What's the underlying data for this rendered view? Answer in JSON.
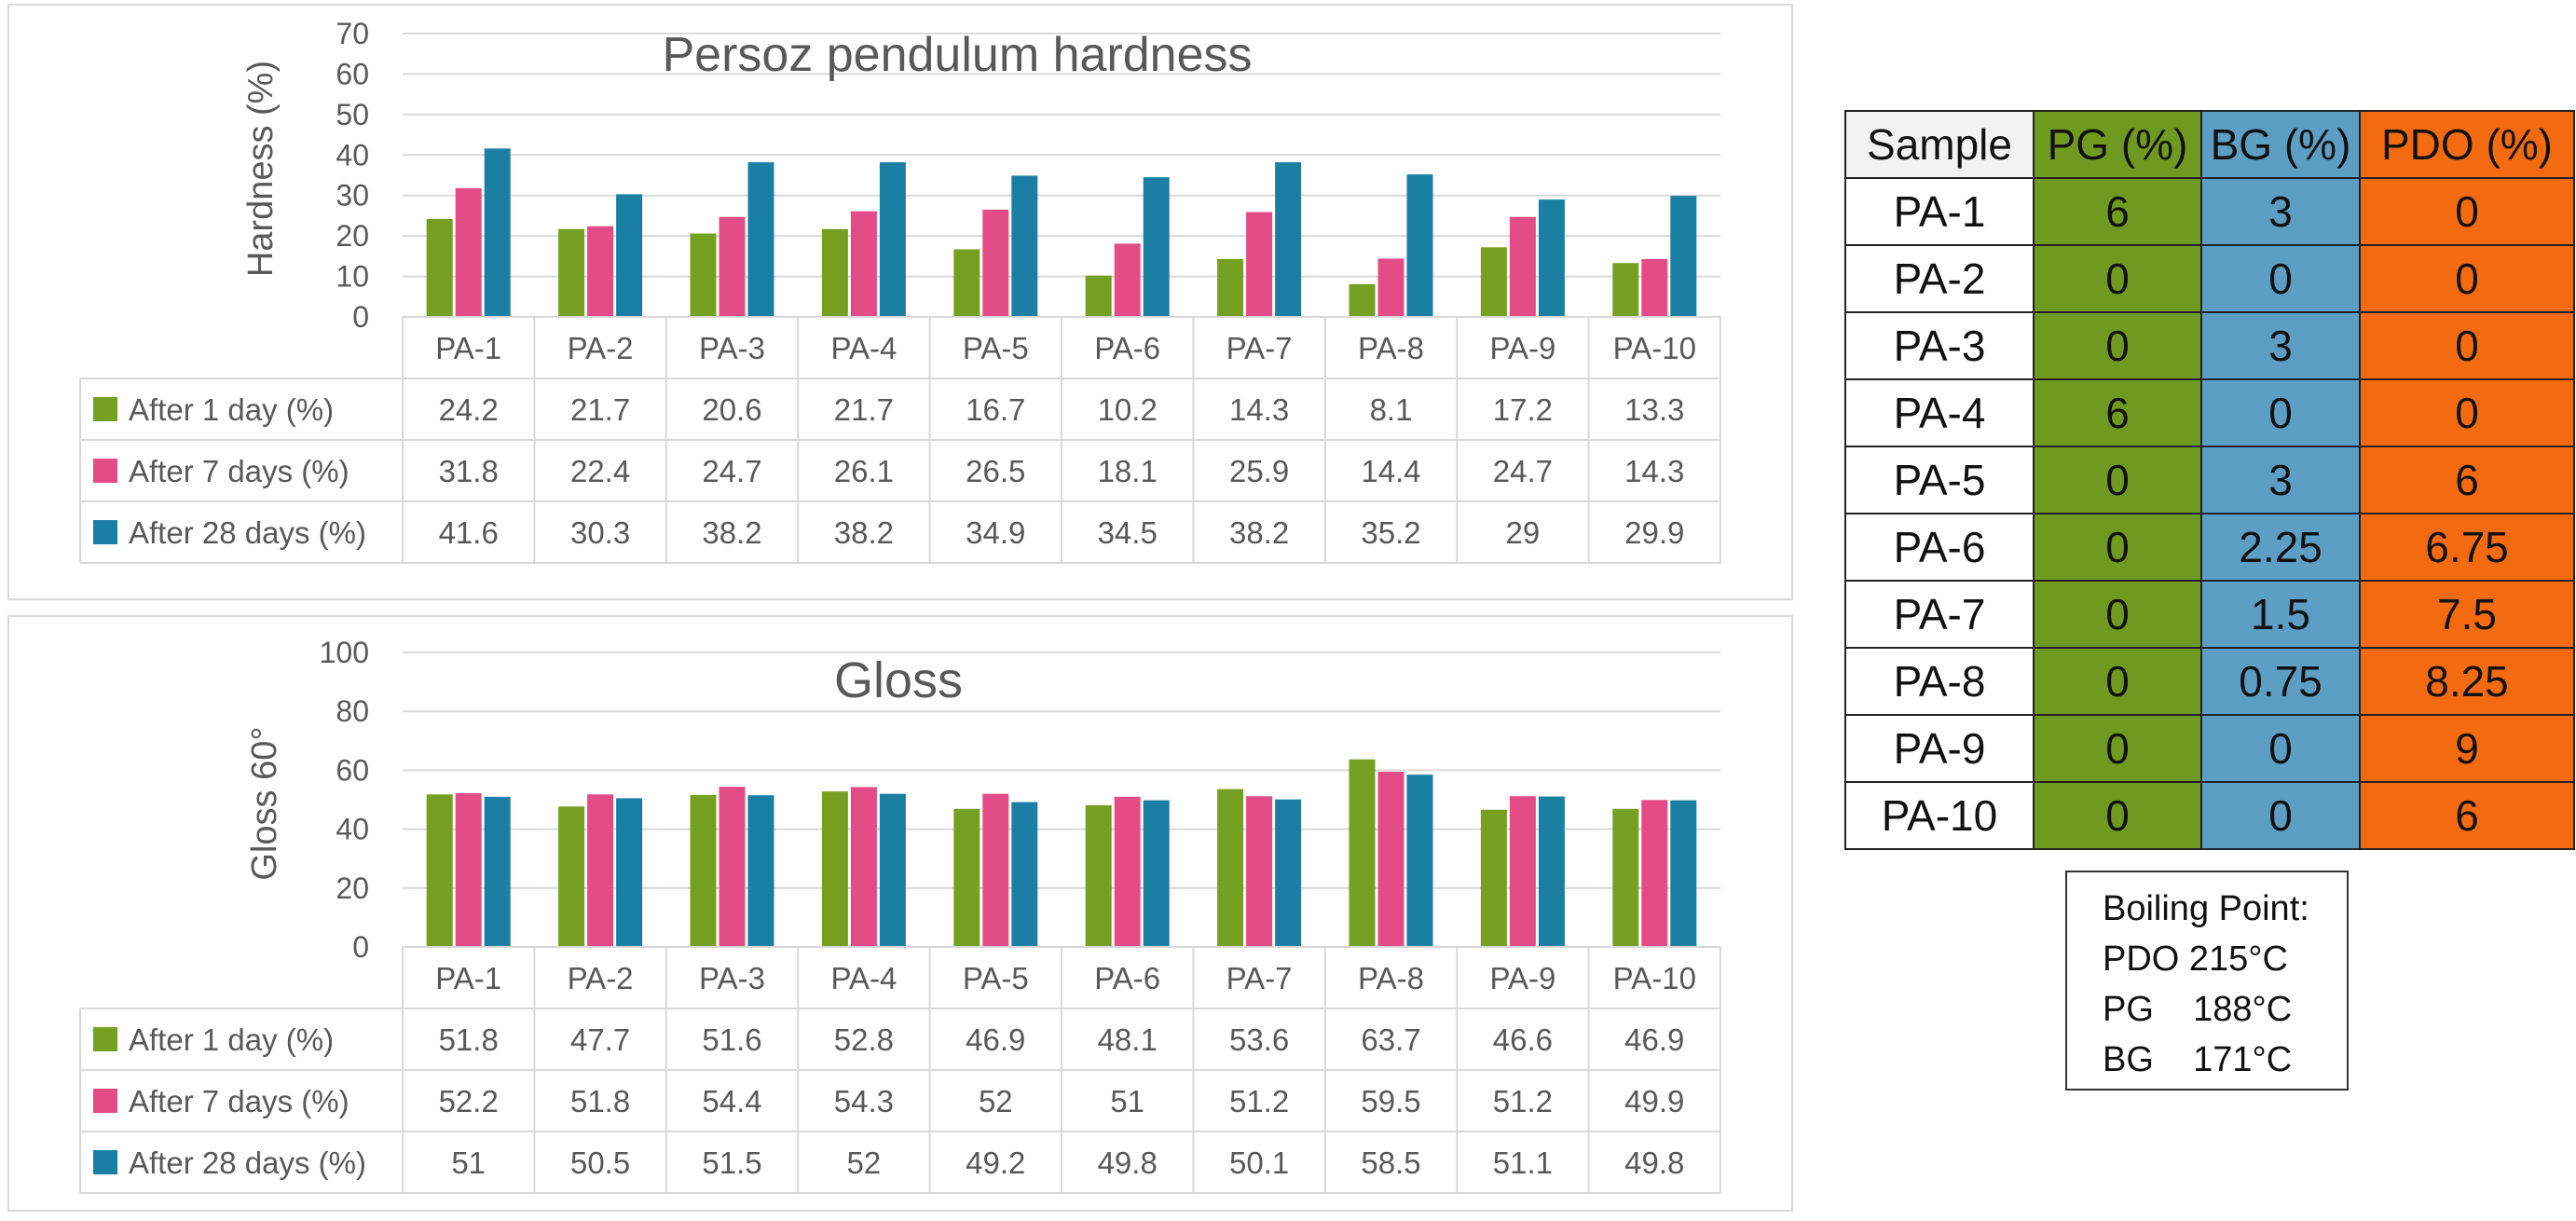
{
  "charts_meta": [
    {
      "panel": "hardness"
    },
    {
      "panel": "gloss"
    }
  ],
  "chart_data": [
    {
      "type": "bar",
      "title": "Persoz pendulum hardness",
      "xlabel": "",
      "ylabel": "Hardness (%)",
      "ylim": [
        0,
        70
      ],
      "yticks": [
        "0",
        "10",
        "20",
        "30",
        "40",
        "50",
        "60",
        "70"
      ],
      "grid": true,
      "legend": "data-table",
      "categories": [
        "PA-1",
        "PA-2",
        "PA-3",
        "PA-4",
        "PA-5",
        "PA-6",
        "PA-7",
        "PA-8",
        "PA-9",
        "PA-10"
      ],
      "series": [
        {
          "name": "After 1 day (%)",
          "color": "#76a021",
          "values": [
            24.2,
            21.7,
            20.6,
            21.7,
            16.7,
            10.2,
            14.3,
            8.1,
            17.2,
            13.3
          ],
          "labels": [
            "24.2",
            "21.7",
            "20.6",
            "21.7",
            "16.7",
            "10.2",
            "14.3",
            "8.1",
            "17.2",
            "13.3"
          ]
        },
        {
          "name": "After 7 days (%)",
          "color": "#e44c88",
          "values": [
            31.8,
            22.4,
            24.7,
            26.1,
            26.5,
            18.1,
            25.9,
            14.4,
            24.7,
            14.3
          ],
          "labels": [
            "31.8",
            "22.4",
            "24.7",
            "26.1",
            "26.5",
            "18.1",
            "25.9",
            "14.4",
            "24.7",
            "14.3"
          ]
        },
        {
          "name": "After 28 days (%)",
          "color": "#1a7fa2",
          "values": [
            41.6,
            30.3,
            38.2,
            38.2,
            34.9,
            34.5,
            38.2,
            35.2,
            29,
            29.9
          ],
          "labels": [
            "41.6",
            "30.3",
            "38.2",
            "38.2",
            "34.9",
            "34.5",
            "38.2",
            "35.2",
            "29",
            "29.9"
          ]
        }
      ]
    },
    {
      "type": "bar",
      "title": "Gloss",
      "xlabel": "",
      "ylabel": "Gloss 60°",
      "ylim": [
        0,
        100
      ],
      "yticks": [
        "0",
        "20",
        "40",
        "60",
        "80",
        "100"
      ],
      "grid": true,
      "legend": "data-table",
      "categories": [
        "PA-1",
        "PA-2",
        "PA-3",
        "PA-4",
        "PA-5",
        "PA-6",
        "PA-7",
        "PA-8",
        "PA-9",
        "PA-10"
      ],
      "series": [
        {
          "name": "After 1 day (%)",
          "color": "#76a021",
          "values": [
            51.8,
            47.7,
            51.6,
            52.8,
            46.9,
            48.1,
            53.6,
            63.7,
            46.6,
            46.9
          ],
          "labels": [
            "51.8",
            "47.7",
            "51.6",
            "52.8",
            "46.9",
            "48.1",
            "53.6",
            "63.7",
            "46.6",
            "46.9"
          ]
        },
        {
          "name": "After 7 days (%)",
          "color": "#e44c88",
          "values": [
            52.2,
            51.8,
            54.4,
            54.3,
            52,
            51,
            51.2,
            59.5,
            51.2,
            49.9
          ],
          "labels": [
            "52.2",
            "51.8",
            "54.4",
            "54.3",
            "52",
            "51",
            "51.2",
            "59.5",
            "51.2",
            "49.9"
          ]
        },
        {
          "name": "After 28 days (%)",
          "color": "#1a7fa2",
          "values": [
            51,
            50.5,
            51.5,
            52,
            49.2,
            49.8,
            50.1,
            58.5,
            51.1,
            49.8
          ],
          "labels": [
            "51",
            "50.5",
            "51.5",
            "52",
            "49.2",
            "49.8",
            "50.1",
            "58.5",
            "51.1",
            "49.8"
          ]
        }
      ]
    }
  ],
  "composition_table": {
    "headers": [
      "Sample",
      "PG (%)",
      "BG (%)",
      "PDO (%)"
    ],
    "header_colors": {
      "pg": "#6f9a1f",
      "bg": "#5d9ec4",
      "pdo": "#f36a10"
    },
    "rows": [
      [
        "PA-1",
        "6",
        "3",
        "0"
      ],
      [
        "PA-2",
        "0",
        "0",
        "0"
      ],
      [
        "PA-3",
        "0",
        "3",
        "0"
      ],
      [
        "PA-4",
        "6",
        "0",
        "0"
      ],
      [
        "PA-5",
        "0",
        "3",
        "6"
      ],
      [
        "PA-6",
        "0",
        "2.25",
        "6.75"
      ],
      [
        "PA-7",
        "0",
        "1.5",
        "7.5"
      ],
      [
        "PA-8",
        "0",
        "0.75",
        "8.25"
      ],
      [
        "PA-9",
        "0",
        "0",
        "9"
      ],
      [
        "PA-10",
        "0",
        "0",
        "6"
      ]
    ]
  },
  "boiling_point": {
    "title": "Boiling Point:",
    "lines": [
      "PDO 215°C",
      "PG    188°C",
      "BG    171°C"
    ]
  }
}
